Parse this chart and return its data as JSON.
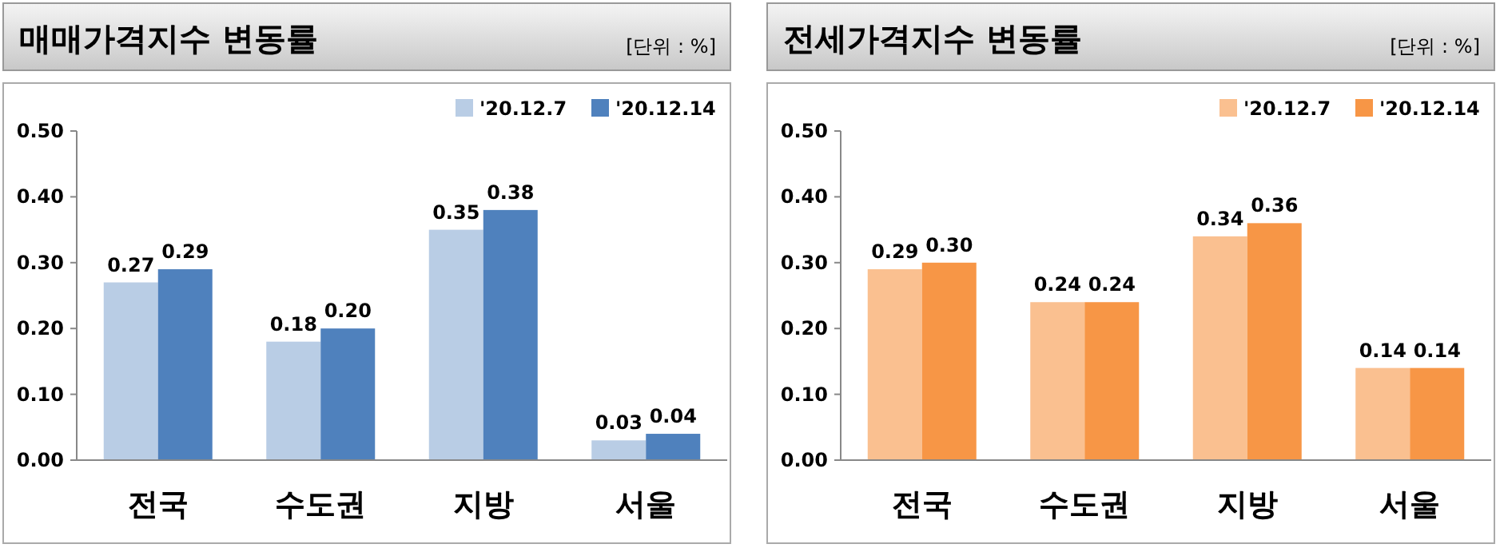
{
  "chart_data": [
    {
      "type": "bar",
      "title": "매매가격지수 변동률",
      "annotations": [
        "[단위 : %]"
      ],
      "categories": [
        "전국",
        "수도권",
        "지방",
        "서울"
      ],
      "ylim": [
        0,
        0.5
      ],
      "yticks": [
        {
          "value": 0,
          "label": "0.00"
        },
        {
          "value": 0.1,
          "label": "0.10"
        },
        {
          "value": 0.2,
          "label": "0.20"
        },
        {
          "value": 0.3,
          "label": "0.30"
        },
        {
          "value": 0.4,
          "label": "0.40"
        },
        {
          "value": 0.5,
          "label": "0.50"
        }
      ],
      "legend": "top right",
      "series": [
        {
          "name": "'20.12.7",
          "color": "#b9cde5",
          "values": [
            0.27,
            0.18,
            0.35,
            0.03
          ],
          "value_labels": [
            "0.27",
            "0.18",
            "0.35",
            "0.03"
          ]
        },
        {
          "name": "'20.12.14",
          "color": "#4f81bd",
          "values": [
            0.29,
            0.2,
            0.38,
            0.04
          ],
          "value_labels": [
            "0.29",
            "0.20",
            "0.38",
            "0.04"
          ]
        }
      ]
    },
    {
      "type": "bar",
      "title": "전세가격지수 변동률",
      "annotations": [
        "[단위 : %]"
      ],
      "categories": [
        "전국",
        "수도권",
        "지방",
        "서울"
      ],
      "ylim": [
        0,
        0.5
      ],
      "yticks": [
        {
          "value": 0,
          "label": "0.00"
        },
        {
          "value": 0.1,
          "label": "0.10"
        },
        {
          "value": 0.2,
          "label": "0.20"
        },
        {
          "value": 0.3,
          "label": "0.30"
        },
        {
          "value": 0.4,
          "label": "0.40"
        },
        {
          "value": 0.5,
          "label": "0.50"
        }
      ],
      "legend": "top right",
      "series": [
        {
          "name": "'20.12.7",
          "color": "#fac090",
          "values": [
            0.29,
            0.24,
            0.34,
            0.14
          ],
          "value_labels": [
            "0.29",
            "0.24",
            "0.34",
            "0.14"
          ]
        },
        {
          "name": "'20.12.14",
          "color": "#f79646",
          "values": [
            0.3,
            0.24,
            0.36,
            0.14
          ],
          "value_labels": [
            "0.30",
            "0.24",
            "0.36",
            "0.14"
          ]
        }
      ]
    }
  ]
}
